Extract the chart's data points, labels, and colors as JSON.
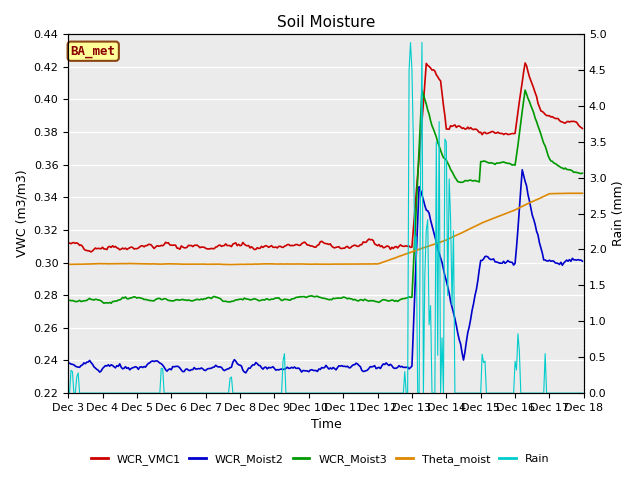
{
  "title": "Soil Moisture",
  "ylabel_left": "VWC (m3/m3)",
  "ylabel_right": "Rain (mm)",
  "xlabel": "Time",
  "annotation": "BA_met",
  "ylim_left": [
    0.22,
    0.44
  ],
  "ylim_right": [
    0.0,
    5.0
  ],
  "yticks_left": [
    0.22,
    0.24,
    0.26,
    0.28,
    0.3,
    0.32,
    0.34,
    0.36,
    0.38,
    0.4,
    0.42,
    0.44
  ],
  "yticks_right": [
    0.0,
    0.5,
    1.0,
    1.5,
    2.0,
    2.5,
    3.0,
    3.5,
    4.0,
    4.5,
    5.0
  ],
  "plot_bg_color": "#ebebeb",
  "legend_labels": [
    "WCR_VMC1",
    "WCR_Moist2",
    "WCR_Moist3",
    "Theta_moist",
    "Rain"
  ],
  "legend_colors": [
    "#cc0000",
    "#0000cc",
    "#009900",
    "#dd8800",
    "#00cccc"
  ],
  "line_widths": [
    1.2,
    1.2,
    1.2,
    1.2,
    0.8
  ],
  "title_fontsize": 11,
  "label_fontsize": 9,
  "tick_fontsize": 8,
  "xtick_labels": [
    "Dec 3",
    "Dec 4",
    "Dec 5",
    "Dec 6",
    "Dec 7",
    "Dec 8",
    "Dec 9",
    "Dec 10",
    "Dec 11",
    "Dec 12",
    "Dec 13",
    "Dec 14",
    "Dec 15",
    "Dec 16",
    "Dec 17",
    "Dec 18"
  ],
  "xtick_hours": [
    0,
    24,
    48,
    72,
    96,
    120,
    144,
    168,
    192,
    216,
    240,
    264,
    288,
    312,
    336,
    360
  ]
}
